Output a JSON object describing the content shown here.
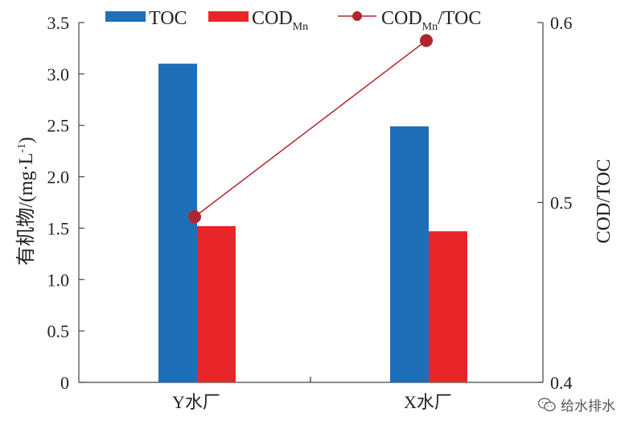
{
  "chart_data": {
    "type": "bar",
    "categories": [
      "Y水厂",
      "X水厂"
    ],
    "series": [
      {
        "name": "TOC",
        "axis": "left",
        "values": [
          3.1,
          2.49
        ],
        "color": "#1f6fb8"
      },
      {
        "name": "COD",
        "name_sub": "Mn",
        "axis": "left",
        "values": [
          1.52,
          1.47
        ],
        "color": "#e8262a"
      },
      {
        "name": "COD",
        "name_sub": "Mn",
        "name_suffix": "/TOC",
        "axis": "right",
        "type": "line",
        "values": [
          0.492,
          0.59
        ],
        "color": "#b0262e"
      }
    ],
    "ylabel_left": "有机物/(mg·L",
    "ylabel_left_sup": "-1",
    "ylabel_left_close": ")",
    "ylabel_right": "COD/TOC",
    "ylim_left": [
      0,
      3.5
    ],
    "ylim_right": [
      0.4,
      0.6
    ],
    "yticks_left": [
      "0",
      "0.5",
      "1.0",
      "1.5",
      "2.0",
      "2.5",
      "3.0",
      "3.5"
    ],
    "yticks_right": [
      "0.4",
      "0.5",
      "0.6"
    ],
    "legend_position": "top"
  },
  "watermark": {
    "text": "给水排水",
    "icon": "wechat-icon"
  }
}
